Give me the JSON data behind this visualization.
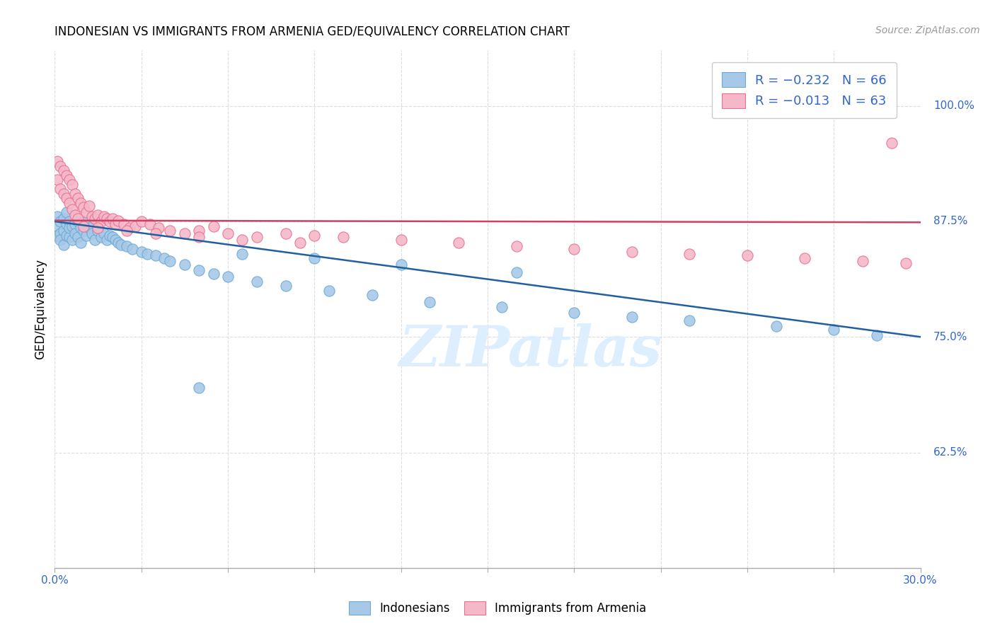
{
  "title": "INDONESIAN VS IMMIGRANTS FROM ARMENIA GED/EQUIVALENCY CORRELATION CHART",
  "source": "Source: ZipAtlas.com",
  "ylabel": "GED/Equivalency",
  "yticks": [
    0.625,
    0.75,
    0.875,
    1.0
  ],
  "ytick_labels": [
    "62.5%",
    "75.0%",
    "87.5%",
    "100.0%"
  ],
  "xmin": 0.0,
  "xmax": 0.3,
  "ymin": 0.5,
  "ymax": 1.06,
  "blue_scatter_color": "#a8c8e8",
  "blue_edge_color": "#6aaad4",
  "pink_scatter_color": "#f4b8c8",
  "pink_edge_color": "#e87090",
  "blue_line_color": "#2060a0",
  "pink_line_color": "#d04060",
  "watermark_color": "#ddeeff",
  "legend_text_color": "#3366cc",
  "ytick_color": "#3366cc",
  "grid_color": "#dddddd",
  "blue_line_y0": 0.875,
  "blue_line_y1": 0.75,
  "pink_line_y0": 0.876,
  "pink_line_y1": 0.874,
  "indonesian_x": [
    0.001,
    0.001,
    0.001,
    0.002,
    0.002,
    0.002,
    0.003,
    0.003,
    0.003,
    0.004,
    0.004,
    0.004,
    0.005,
    0.005,
    0.005,
    0.006,
    0.006,
    0.007,
    0.007,
    0.008,
    0.008,
    0.009,
    0.009,
    0.01,
    0.01,
    0.011,
    0.012,
    0.013,
    0.014,
    0.015,
    0.016,
    0.017,
    0.018,
    0.019,
    0.02,
    0.021,
    0.022,
    0.023,
    0.025,
    0.027,
    0.03,
    0.032,
    0.035,
    0.038,
    0.04,
    0.045,
    0.05,
    0.055,
    0.06,
    0.07,
    0.08,
    0.095,
    0.11,
    0.13,
    0.155,
    0.18,
    0.2,
    0.22,
    0.25,
    0.27,
    0.285,
    0.05,
    0.065,
    0.09,
    0.12,
    0.16
  ],
  "indonesian_y": [
    0.87,
    0.88,
    0.86,
    0.875,
    0.862,
    0.855,
    0.878,
    0.865,
    0.85,
    0.872,
    0.86,
    0.885,
    0.875,
    0.858,
    0.868,
    0.87,
    0.855,
    0.872,
    0.862,
    0.875,
    0.858,
    0.868,
    0.852,
    0.865,
    0.875,
    0.86,
    0.868,
    0.862,
    0.855,
    0.865,
    0.858,
    0.862,
    0.855,
    0.86,
    0.858,
    0.855,
    0.852,
    0.85,
    0.848,
    0.845,
    0.842,
    0.84,
    0.838,
    0.835,
    0.832,
    0.828,
    0.822,
    0.818,
    0.815,
    0.81,
    0.805,
    0.8,
    0.795,
    0.788,
    0.782,
    0.776,
    0.772,
    0.768,
    0.762,
    0.758,
    0.752,
    0.695,
    0.84,
    0.835,
    0.828,
    0.82
  ],
  "armenia_x": [
    0.001,
    0.001,
    0.002,
    0.002,
    0.003,
    0.003,
    0.004,
    0.004,
    0.005,
    0.005,
    0.006,
    0.006,
    0.007,
    0.007,
    0.008,
    0.008,
    0.009,
    0.01,
    0.011,
    0.012,
    0.013,
    0.014,
    0.015,
    0.016,
    0.017,
    0.018,
    0.019,
    0.02,
    0.021,
    0.022,
    0.024,
    0.026,
    0.028,
    0.03,
    0.033,
    0.036,
    0.04,
    0.045,
    0.05,
    0.055,
    0.06,
    0.07,
    0.08,
    0.09,
    0.1,
    0.12,
    0.14,
    0.16,
    0.18,
    0.2,
    0.22,
    0.24,
    0.26,
    0.28,
    0.295,
    0.01,
    0.015,
    0.025,
    0.035,
    0.05,
    0.065,
    0.085,
    0.29
  ],
  "armenia_y": [
    0.94,
    0.92,
    0.935,
    0.91,
    0.93,
    0.905,
    0.925,
    0.9,
    0.92,
    0.895,
    0.915,
    0.888,
    0.905,
    0.882,
    0.9,
    0.878,
    0.895,
    0.89,
    0.885,
    0.892,
    0.88,
    0.878,
    0.882,
    0.875,
    0.88,
    0.878,
    0.875,
    0.878,
    0.872,
    0.876,
    0.872,
    0.868,
    0.87,
    0.875,
    0.872,
    0.868,
    0.865,
    0.862,
    0.865,
    0.87,
    0.862,
    0.858,
    0.862,
    0.86,
    0.858,
    0.855,
    0.852,
    0.848,
    0.845,
    0.842,
    0.84,
    0.838,
    0.835,
    0.832,
    0.83,
    0.87,
    0.868,
    0.865,
    0.862,
    0.858,
    0.855,
    0.852,
    0.96
  ]
}
